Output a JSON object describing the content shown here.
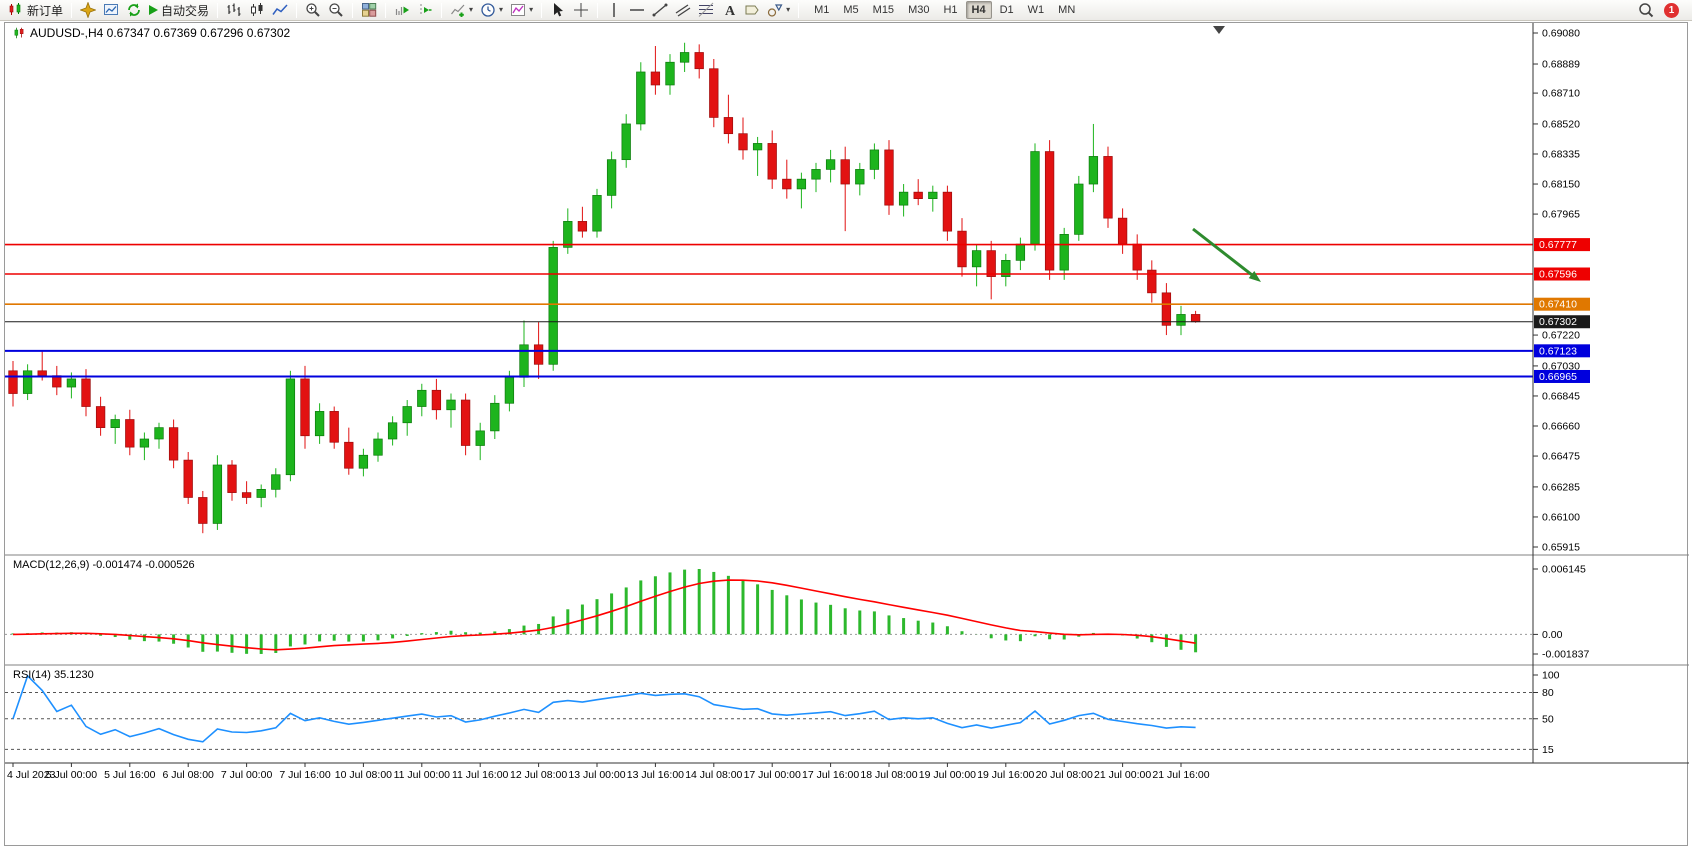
{
  "toolbar": {
    "new_order": "新订单",
    "auto_trading": "自动交易",
    "timeframes": [
      "M1",
      "M5",
      "M15",
      "M30",
      "H1",
      "H4",
      "D1",
      "W1",
      "MN"
    ],
    "active_timeframe": "H4",
    "notification_count": "1"
  },
  "chart": {
    "title": "AUDUSD-,H4 0.67347 0.67369 0.67296 0.67302",
    "symbol": "AUDUSD-",
    "period": "H4",
    "ohlc": {
      "open": "0.67347",
      "high": "0.67369",
      "low": "0.67296",
      "close": "0.67302"
    }
  },
  "chart_data": {
    "type": "candlestick",
    "symbol": "AUDUSD",
    "timeframe": "H4",
    "y_range": [
      0.65915,
      0.6908
    ],
    "y_ticks": [
      "0.69080",
      "0.68889",
      "0.68710",
      "0.68520",
      "0.68335",
      "0.68150",
      "0.67965",
      "0.67220",
      "0.67030",
      "0.66845",
      "0.66660",
      "0.66475",
      "0.66285",
      "0.66100",
      "0.65915"
    ],
    "time_labels": [
      "4 Jul 2023",
      "5 Jul 00:00",
      "5 Jul 16:00",
      "6 Jul 08:00",
      "7 Jul 00:00",
      "7 Jul 16:00",
      "10 Jul 08:00",
      "11 Jul 00:00",
      "11 Jul 16:00",
      "12 Jul 08:00",
      "13 Jul 00:00",
      "13 Jul 16:00",
      "14 Jul 08:00",
      "17 Jul 00:00",
      "17 Jul 16:00",
      "18 Jul 08:00",
      "19 Jul 00:00",
      "19 Jul 16:00",
      "20 Jul 08:00",
      "21 Jul 00:00",
      "21 Jul 16:00"
    ],
    "levels": [
      {
        "label": "0.67777",
        "price": 0.67777,
        "color": "#ee0000",
        "width": 1.6
      },
      {
        "label": "0.67596",
        "price": 0.67596,
        "color": "#ee0000",
        "width": 1.6
      },
      {
        "label": "0.67410",
        "price": 0.6741,
        "color": "#e07800",
        "width": 1.6
      },
      {
        "label": "0.67302",
        "price": 0.67302,
        "color": "#1a1a1a",
        "width": 1,
        "current": true
      },
      {
        "label": "0.67123",
        "price": 0.67123,
        "color": "#0000dd",
        "width": 2
      },
      {
        "label": "0.66965",
        "price": 0.66965,
        "color": "#0000dd",
        "width": 2
      }
    ],
    "candles": [
      [
        0.67,
        0.6706,
        0.6678,
        0.6686
      ],
      [
        0.6686,
        0.6704,
        0.6682,
        0.67
      ],
      [
        0.67,
        0.6712,
        0.6694,
        0.6697
      ],
      [
        0.6697,
        0.6703,
        0.6685,
        0.669
      ],
      [
        0.669,
        0.6699,
        0.6683,
        0.6695
      ],
      [
        0.6695,
        0.6701,
        0.6672,
        0.6678
      ],
      [
        0.6678,
        0.6684,
        0.666,
        0.6665
      ],
      [
        0.6665,
        0.6673,
        0.6655,
        0.667
      ],
      [
        0.667,
        0.6676,
        0.6648,
        0.6653
      ],
      [
        0.6653,
        0.6662,
        0.6645,
        0.6658
      ],
      [
        0.6658,
        0.6668,
        0.6652,
        0.6665
      ],
      [
        0.6665,
        0.667,
        0.664,
        0.6645
      ],
      [
        0.6645,
        0.665,
        0.6618,
        0.6622
      ],
      [
        0.6622,
        0.6626,
        0.66,
        0.6606
      ],
      [
        0.6606,
        0.6648,
        0.6602,
        0.6642
      ],
      [
        0.6642,
        0.6645,
        0.662,
        0.6625
      ],
      [
        0.6625,
        0.6632,
        0.6618,
        0.6622
      ],
      [
        0.6622,
        0.663,
        0.6616,
        0.6627
      ],
      [
        0.6627,
        0.664,
        0.6622,
        0.6636
      ],
      [
        0.6636,
        0.67,
        0.6632,
        0.6695
      ],
      [
        0.6695,
        0.6703,
        0.6652,
        0.666
      ],
      [
        0.666,
        0.668,
        0.6655,
        0.6675
      ],
      [
        0.6675,
        0.6678,
        0.6652,
        0.6656
      ],
      [
        0.6656,
        0.6665,
        0.6636,
        0.664
      ],
      [
        0.664,
        0.6652,
        0.6635,
        0.6648
      ],
      [
        0.6648,
        0.6662,
        0.6644,
        0.6658
      ],
      [
        0.6658,
        0.6672,
        0.6654,
        0.6668
      ],
      [
        0.6668,
        0.6682,
        0.666,
        0.6678
      ],
      [
        0.6678,
        0.6692,
        0.6672,
        0.6688
      ],
      [
        0.6688,
        0.6695,
        0.667,
        0.6676
      ],
      [
        0.6676,
        0.6686,
        0.6665,
        0.6682
      ],
      [
        0.6682,
        0.6686,
        0.6648,
        0.6654
      ],
      [
        0.6654,
        0.6668,
        0.6645,
        0.6663
      ],
      [
        0.6663,
        0.6685,
        0.6658,
        0.668
      ],
      [
        0.668,
        0.67,
        0.6675,
        0.6696
      ],
      [
        0.6696,
        0.6731,
        0.669,
        0.6716
      ],
      [
        0.6716,
        0.673,
        0.6695,
        0.6704
      ],
      [
        0.6704,
        0.678,
        0.67,
        0.6776
      ],
      [
        0.6776,
        0.68,
        0.6772,
        0.6792
      ],
      [
        0.6792,
        0.6801,
        0.6782,
        0.6786
      ],
      [
        0.6786,
        0.6812,
        0.6782,
        0.6808
      ],
      [
        0.6808,
        0.6835,
        0.68,
        0.683
      ],
      [
        0.683,
        0.6858,
        0.6825,
        0.6852
      ],
      [
        0.6852,
        0.689,
        0.6848,
        0.6884
      ],
      [
        0.6884,
        0.69,
        0.687,
        0.6876
      ],
      [
        0.6876,
        0.6895,
        0.687,
        0.689
      ],
      [
        0.689,
        0.6902,
        0.6884,
        0.6896
      ],
      [
        0.6896,
        0.6901,
        0.688,
        0.6886
      ],
      [
        0.6886,
        0.6892,
        0.685,
        0.6856
      ],
      [
        0.6856,
        0.687,
        0.684,
        0.6846
      ],
      [
        0.6846,
        0.6856,
        0.683,
        0.6836
      ],
      [
        0.6836,
        0.6844,
        0.682,
        0.684
      ],
      [
        0.684,
        0.6848,
        0.6812,
        0.6818
      ],
      [
        0.6818,
        0.683,
        0.6806,
        0.6812
      ],
      [
        0.6812,
        0.6822,
        0.68,
        0.6818
      ],
      [
        0.6818,
        0.6828,
        0.681,
        0.6824
      ],
      [
        0.6824,
        0.6836,
        0.6816,
        0.683
      ],
      [
        0.683,
        0.6838,
        0.6786,
        0.6815
      ],
      [
        0.6815,
        0.6828,
        0.6808,
        0.6824
      ],
      [
        0.6824,
        0.684,
        0.6818,
        0.6836
      ],
      [
        0.6836,
        0.6842,
        0.6796,
        0.6802
      ],
      [
        0.6802,
        0.6815,
        0.6795,
        0.681
      ],
      [
        0.681,
        0.6818,
        0.6802,
        0.6806
      ],
      [
        0.6806,
        0.6814,
        0.6798,
        0.681
      ],
      [
        0.681,
        0.6814,
        0.678,
        0.6786
      ],
      [
        0.6786,
        0.6794,
        0.6758,
        0.6764
      ],
      [
        0.6764,
        0.6778,
        0.6752,
        0.6774
      ],
      [
        0.6774,
        0.678,
        0.6744,
        0.6758
      ],
      [
        0.6758,
        0.6772,
        0.6752,
        0.6768
      ],
      [
        0.6768,
        0.6782,
        0.6762,
        0.6778
      ],
      [
        0.6778,
        0.684,
        0.6774,
        0.6835
      ],
      [
        0.6835,
        0.6842,
        0.6756,
        0.6762
      ],
      [
        0.6762,
        0.6788,
        0.6756,
        0.6784
      ],
      [
        0.6784,
        0.682,
        0.678,
        0.6815
      ],
      [
        0.6815,
        0.6852,
        0.681,
        0.6832
      ],
      [
        0.6832,
        0.6838,
        0.6788,
        0.6794
      ],
      [
        0.6794,
        0.68,
        0.6772,
        0.6778
      ],
      [
        0.6778,
        0.6784,
        0.6756,
        0.6762
      ],
      [
        0.6762,
        0.6768,
        0.6742,
        0.6748
      ],
      [
        0.6748,
        0.6754,
        0.6722,
        0.6728
      ],
      [
        0.6728,
        0.674,
        0.6722,
        0.67347
      ],
      [
        0.67347,
        0.67369,
        0.67296,
        0.67302
      ]
    ],
    "indicators": {
      "macd": {
        "label": "MACD(12,26,9)",
        "values_text": "-0.001474 -0.000526",
        "main_value": -0.001474,
        "signal_value": -0.000526,
        "params": [
          12,
          26,
          9
        ],
        "axis_labels": [
          "0.006145",
          "0.00",
          "-0.001837"
        ],
        "range": [
          -0.001837,
          0.006145
        ],
        "histogram_color": "#2db82d",
        "signal_color": "#ff0000"
      },
      "rsi": {
        "label": "RSI(14)",
        "value_text": "35.1230",
        "value": 35.123,
        "period": 14,
        "axis_labels": [
          "100",
          "80",
          "50",
          "15"
        ],
        "levels": [
          80,
          50,
          15
        ],
        "range": [
          0,
          100
        ],
        "line_color": "#1e90ff"
      }
    },
    "annotation_arrow": {
      "color": "#2e8b2e"
    }
  }
}
